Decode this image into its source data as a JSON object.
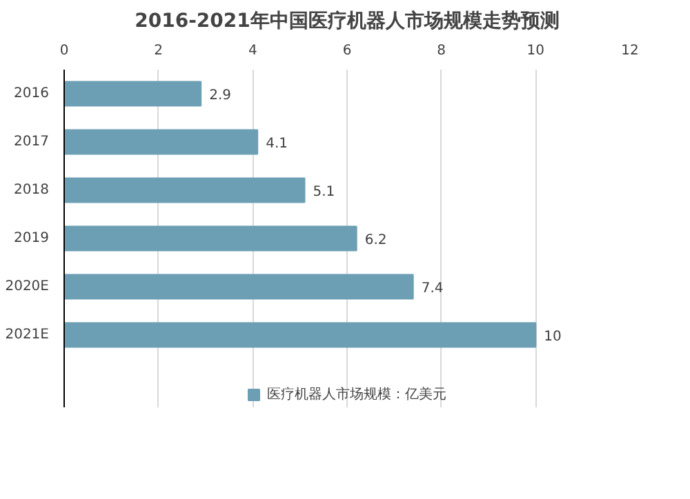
{
  "chart_data": {
    "type": "bar",
    "orientation": "horizontal",
    "title": "2016-2021年中国医疗机器人市场规模走势预测",
    "categories": [
      "2016",
      "2017",
      "2018",
      "2019",
      "2020E",
      "2021E"
    ],
    "series": [
      {
        "name": "医疗机器人市场规模：亿美元",
        "color": "#6d9fb4",
        "values": [
          2.9,
          4.1,
          5.1,
          6.2,
          7.4,
          10
        ]
      }
    ],
    "xlim": [
      0,
      12
    ],
    "xticks": [
      0,
      2,
      4,
      6,
      8,
      10,
      12
    ],
    "grid": "x",
    "legend": "bottom",
    "data_labels": true
  }
}
